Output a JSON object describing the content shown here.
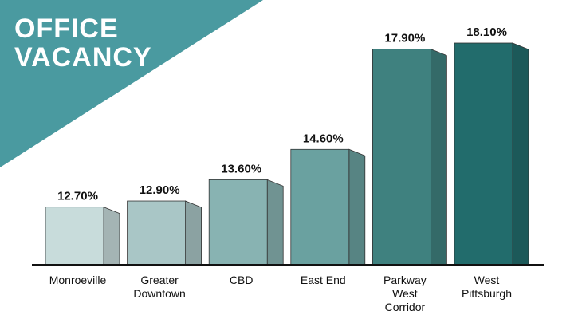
{
  "title": {
    "line1": "OFFICE",
    "line2": "VACANCY"
  },
  "colors": {
    "banner": "#4a9aa0",
    "axis": "#111111",
    "value_label": "#111111",
    "bar_fronts": [
      "#c8dcdb",
      "#a9c6c6",
      "#88b3b2",
      "#6aa1a0",
      "#3f817f",
      "#226c6c"
    ]
  },
  "chart_data": {
    "type": "bar",
    "categories": [
      [
        "Monroeville"
      ],
      [
        "Greater",
        "Downtown"
      ],
      [
        "CBD"
      ],
      [
        "East End"
      ],
      [
        "Parkway",
        "West",
        "Corridor"
      ],
      [
        "West",
        "Pittsburgh"
      ]
    ],
    "values": [
      12.7,
      12.9,
      13.6,
      14.6,
      17.9,
      18.1
    ],
    "value_labels": [
      "12.70%",
      "12.90%",
      "13.60%",
      "14.60%",
      "17.90%",
      "18.10%"
    ],
    "ylim": [
      10.8,
      18.1
    ],
    "grid": false,
    "legend": "none"
  }
}
